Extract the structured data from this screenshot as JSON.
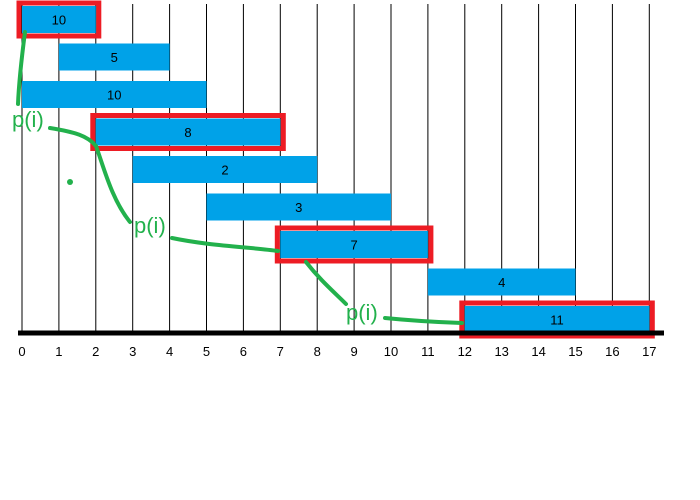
{
  "colors": {
    "background": "#ffffff",
    "gridline": "#000000",
    "bar": "#00a2e8",
    "highlight": "#ed1c24",
    "path": "#22b14c",
    "text": "#000000"
  },
  "diagram": {
    "axis_ticks": [
      "0",
      "1",
      "2",
      "3",
      "4",
      "5",
      "6",
      "7",
      "8",
      "9",
      "10",
      "11",
      "12",
      "13",
      "14",
      "15",
      "16",
      "17"
    ],
    "intervals": [
      {
        "start": 0,
        "end": 2,
        "weight": "10",
        "selected": true
      },
      {
        "start": 1,
        "end": 4,
        "weight": "5",
        "selected": false
      },
      {
        "start": 0,
        "end": 5,
        "weight": "10",
        "selected": false
      },
      {
        "start": 2,
        "end": 7,
        "weight": "8",
        "selected": true
      },
      {
        "start": 3,
        "end": 8,
        "weight": "2",
        "selected": false
      },
      {
        "start": 5,
        "end": 10,
        "weight": "3",
        "selected": false
      },
      {
        "start": 7,
        "end": 11,
        "weight": "7",
        "selected": true
      },
      {
        "start": 11,
        "end": 15,
        "weight": "4",
        "selected": false
      },
      {
        "start": 12,
        "end": 17,
        "weight": "11",
        "selected": true
      }
    ],
    "pointer_labels": [
      "p(i)",
      "p(i)",
      "p(i)"
    ]
  }
}
